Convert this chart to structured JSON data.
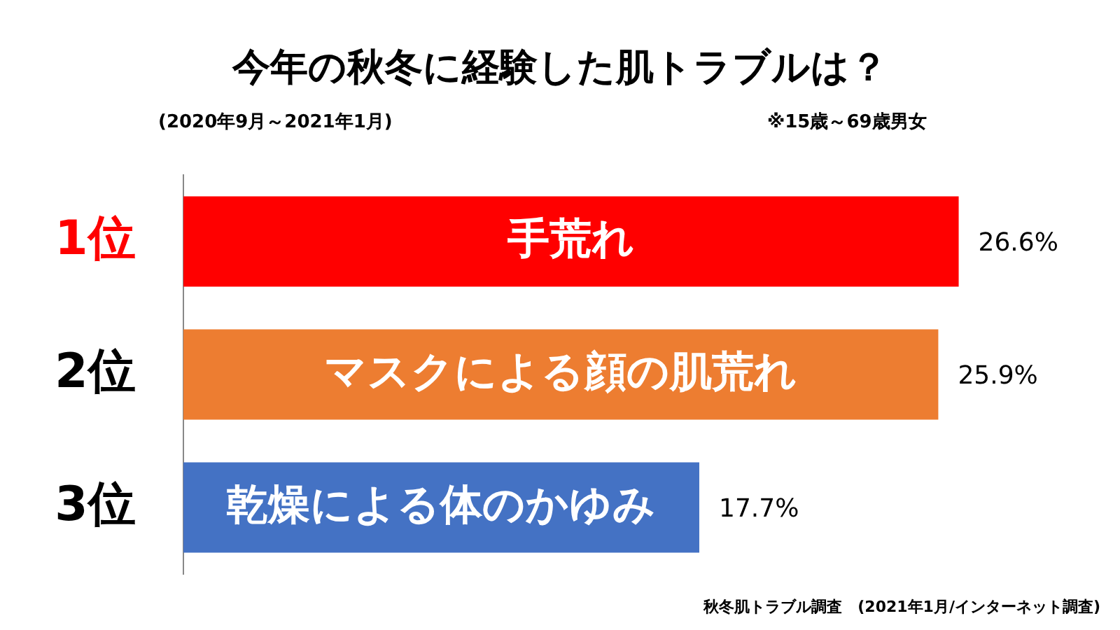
{
  "chart_data": {
    "type": "bar",
    "orientation": "horizontal",
    "title": "今年の秋冬に経験した肌トラブルは？",
    "subtitle": "(2020年9月～2021年1月)",
    "categories": [
      "手荒れ",
      "マスクによる顔の肌荒れ",
      "乾燥による体のかゆみ"
    ],
    "values": [
      26.6,
      25.9,
      17.7
    ],
    "value_labels": [
      "26.6%",
      "25.9%",
      "17.7%"
    ],
    "colors": [
      "#ff0000",
      "#ed7d31",
      "#4472c4"
    ],
    "grid": false,
    "legend": false,
    "annotations": [
      "1位",
      "2位",
      "3位",
      "※15歳～69歳男女",
      "秋冬肌トラブル調査　(2021年1月/インターネット調査)"
    ]
  }
}
